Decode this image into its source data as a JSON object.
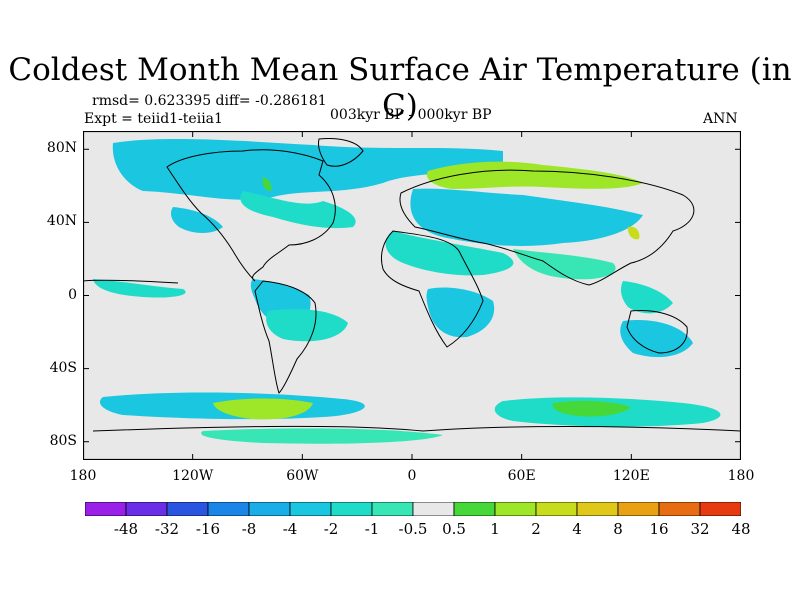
{
  "title": "Coldest Month Mean Surface Air Temperature (in C)",
  "stats_text": "rmsd= 0.623395 diff= -0.286181",
  "experiment_text": "Expt = teiid1-teiia1",
  "period_text": "003kyr BP - 000kyr BP",
  "season_text": "ANN",
  "lat_ticks": [
    {
      "value": 80,
      "label": "80N"
    },
    {
      "value": 40,
      "label": "40N"
    },
    {
      "value": 0,
      "label": "0"
    },
    {
      "value": -40,
      "label": "40S"
    },
    {
      "value": -80,
      "label": "80S"
    }
  ],
  "lon_ticks": [
    {
      "value": -180,
      "label": "180"
    },
    {
      "value": -120,
      "label": "120W"
    },
    {
      "value": -60,
      "label": "60W"
    },
    {
      "value": 0,
      "label": "0"
    },
    {
      "value": 60,
      "label": "60E"
    },
    {
      "value": 120,
      "label": "120E"
    },
    {
      "value": 180,
      "label": "180"
    }
  ],
  "colorbar": {
    "colors": [
      "#9a1fe8",
      "#6a2ee6",
      "#2a55e0",
      "#1c86e8",
      "#19aee8",
      "#1ac6e0",
      "#1fdcc8",
      "#37e6b4",
      "#e8e8e8",
      "#46d838",
      "#9ee628",
      "#c8dc1e",
      "#e0c81a",
      "#e8a014",
      "#e86c12",
      "#e83a10"
    ],
    "labels": [
      "-48",
      "-32",
      "-16",
      "-8",
      "-4",
      "-2",
      "-1",
      "-0.5",
      "0.5",
      "1",
      "2",
      "4",
      "8",
      "16",
      "32",
      "48"
    ],
    "background_color": "#e8e8e8"
  }
}
